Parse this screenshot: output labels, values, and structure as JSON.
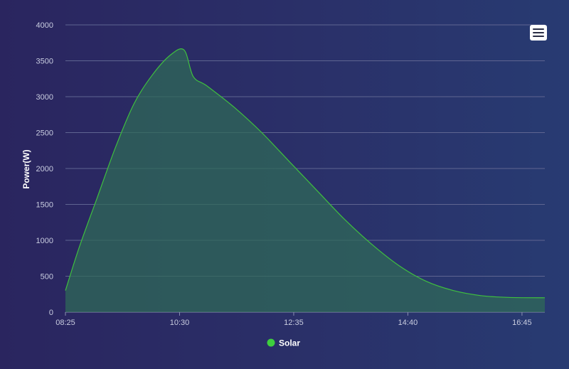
{
  "chart_data": {
    "type": "area",
    "title": "",
    "xlabel": "",
    "ylabel": "Power(W)",
    "ylim": [
      0,
      4000
    ],
    "xlim": [
      "08:25",
      "17:10"
    ],
    "y_ticks": [
      0,
      500,
      1000,
      1500,
      2000,
      2500,
      3000,
      3500,
      4000
    ],
    "x_ticks": [
      "08:25",
      "10:30",
      "12:35",
      "14:40",
      "16:45"
    ],
    "grid": true,
    "legend": "bottom-center",
    "series": [
      {
        "name": "Solar",
        "color": "#3fbf3f",
        "points": [
          [
            "08:25",
            300
          ],
          [
            "08:40",
            900
          ],
          [
            "09:00",
            1600
          ],
          [
            "09:20",
            2300
          ],
          [
            "09:40",
            2900
          ],
          [
            "10:00",
            3300
          ],
          [
            "10:20",
            3580
          ],
          [
            "10:35",
            3650
          ],
          [
            "10:45",
            3280
          ],
          [
            "11:00",
            3150
          ],
          [
            "11:30",
            2850
          ],
          [
            "12:00",
            2500
          ],
          [
            "12:30",
            2100
          ],
          [
            "13:00",
            1700
          ],
          [
            "13:30",
            1300
          ],
          [
            "14:00",
            950
          ],
          [
            "14:30",
            650
          ],
          [
            "15:00",
            430
          ],
          [
            "15:30",
            300
          ],
          [
            "16:00",
            230
          ],
          [
            "16:30",
            205
          ],
          [
            "17:10",
            200
          ]
        ]
      }
    ]
  },
  "legend": {
    "label": "Solar",
    "color": "#3ecf3e"
  },
  "menu": {
    "icon": "hamburger-menu-icon"
  }
}
